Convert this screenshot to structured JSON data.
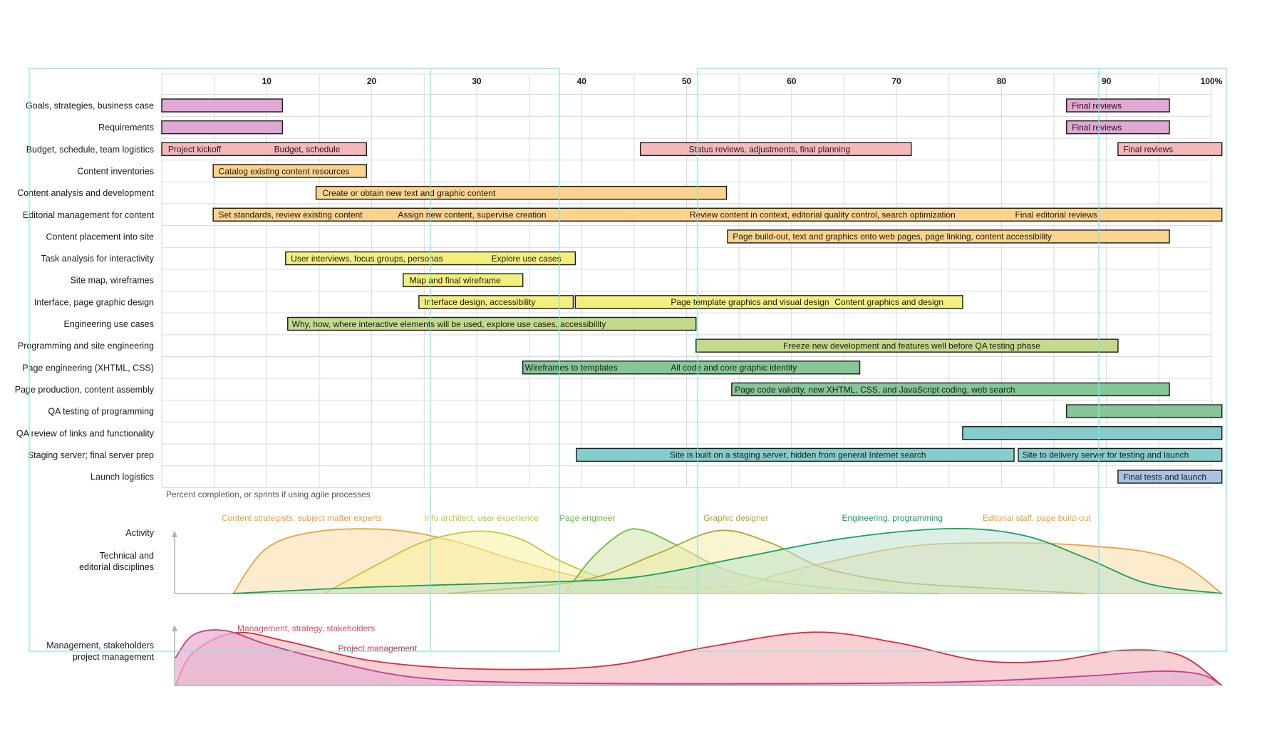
{
  "chart_data": {
    "type": "gantt",
    "x_axis": {
      "range": [
        0,
        100
      ],
      "ticks": [
        10,
        20,
        30,
        40,
        50,
        60,
        70,
        80,
        90,
        100
      ],
      "tick_labels": [
        "10",
        "20",
        "30",
        "40",
        "50",
        "60",
        "70",
        "80",
        "90",
        "100%"
      ],
      "note": "Percent completion, or sprints if using agile processes",
      "grid": true
    },
    "colors": {
      "mgmt": "#e2a8d4",
      "pm": "#f7b8bc",
      "content": "#fbd38c",
      "ux": "#f2ef7e",
      "eng": "#c3da8c",
      "page": "#85c796",
      "qa": "#85cccc",
      "launch": "#a9c3e6",
      "guide": "#7ee6e6"
    },
    "rows": [
      {
        "label": "Goals, strategies, business case",
        "bars": [
          {
            "start": 0,
            "end": 11.5,
            "color": "mgmt",
            "labels": []
          },
          {
            "start": 86.2,
            "end": 96,
            "color": "mgmt",
            "labels": [
              {
                "text": "Final reviews",
                "at": 86.7
              }
            ]
          }
        ]
      },
      {
        "label": "Requirements",
        "bars": [
          {
            "start": 0,
            "end": 11.5,
            "color": "mgmt",
            "labels": []
          },
          {
            "start": 86.2,
            "end": 96,
            "color": "mgmt",
            "labels": [
              {
                "text": "Final reviews",
                "at": 86.7
              }
            ]
          }
        ]
      },
      {
        "label": "Budget, schedule, team logistics",
        "bars": [
          {
            "start": 0,
            "end": 19.5,
            "color": "pm",
            "labels": [
              {
                "text": "Project kickoff",
                "at": 0.6
              },
              {
                "text": "Budget, schedule",
                "at": 10.7
              }
            ]
          },
          {
            "start": 45.6,
            "end": 71.4,
            "color": "pm",
            "labels": [
              {
                "text": "Status reviews, adjustments, final planning",
                "at": 50.2
              }
            ]
          },
          {
            "start": 91.1,
            "end": 101,
            "color": "pm",
            "labels": [
              {
                "text": "Final reviews",
                "at": 91.6
              }
            ]
          }
        ]
      },
      {
        "label": "Content inventories",
        "bars": [
          {
            "start": 4.9,
            "end": 19.5,
            "color": "content",
            "labels": [
              {
                "text": "Catalog existing content resources",
                "at": 5.4
              }
            ]
          }
        ]
      },
      {
        "label": "Content analysis and development",
        "bars": [
          {
            "start": 14.7,
            "end": 53.8,
            "color": "content",
            "labels": [
              {
                "text": "Create or obtain new text and graphic content",
                "at": 15.3
              }
            ]
          }
        ]
      },
      {
        "label": "Editorial management for content",
        "bars": [
          {
            "start": 4.9,
            "end": 101,
            "color": "content",
            "labels": [
              {
                "text": "Set standards, review existing content",
                "at": 5.4
              },
              {
                "text": "Assign new content, supervise creation",
                "at": 22.5
              },
              {
                "text": "Review content in context, editorial quality control, search optimization",
                "at": 50.3
              },
              {
                "text": "Final editorial reviews",
                "at": 81.3
              }
            ]
          }
        ]
      },
      {
        "label": "Content placement into site",
        "bars": [
          {
            "start": 53.9,
            "end": 96,
            "color": "content",
            "labels": [
              {
                "text": "Page build-out, text and graphics onto web pages, page linking, content accessibility",
                "at": 54.4
              }
            ]
          }
        ]
      },
      {
        "label": "Task analysis for interactivity",
        "bars": [
          {
            "start": 11.8,
            "end": 39.4,
            "color": "ux",
            "labels": [
              {
                "text": "User interviews, focus groups, personas",
                "at": 12.3
              },
              {
                "text": "Explore use cases",
                "at": 31.4
              }
            ]
          }
        ]
      },
      {
        "label": "Site map, wireframes",
        "bars": [
          {
            "start": 23,
            "end": 34.4,
            "color": "ux",
            "labels": [
              {
                "text": "Map and final wireframe",
                "at": 23.6
              }
            ]
          }
        ]
      },
      {
        "label": "Interface, page graphic design",
        "bars": [
          {
            "start": 24.5,
            "end": 39.2,
            "color": "ux",
            "labels": [
              {
                "text": "Interface design, accessibility",
                "at": 25
              }
            ]
          },
          {
            "start": 39.4,
            "end": 76.3,
            "color": "ux",
            "labels": [
              {
                "text": "Page template graphics and visual design",
                "at": 48.5
              },
              {
                "text": "Content graphics and design",
                "at": 64.1
              }
            ]
          }
        ]
      },
      {
        "label": "Engineering use cases",
        "bars": [
          {
            "start": 12,
            "end": 50.9,
            "color": "eng",
            "labels": [
              {
                "text": "Why, how, where interactive elements will be used, explore use cases, accessibility",
                "at": 12.4
              }
            ]
          }
        ]
      },
      {
        "label": "Programming and site engineering",
        "bars": [
          {
            "start": 50.9,
            "end": 91.1,
            "color": "eng",
            "labels": [
              {
                "text": "Freeze new development and features well before QA testing phase",
                "at": 59.2
              }
            ]
          }
        ]
      },
      {
        "label": "Page engineering (XHTML, CSS)",
        "bars": [
          {
            "start": 34.4,
            "end": 66.5,
            "color": "page",
            "labels": [
              {
                "text": "Wireframes to templates",
                "at": 34.6
              },
              {
                "text": "All code and core graphic identity",
                "at": 48.5
              }
            ]
          }
        ]
      },
      {
        "label": "Page production, content assembly",
        "bars": [
          {
            "start": 54.3,
            "end": 96,
            "color": "page",
            "labels": [
              {
                "text": "Page code validity, new XHTML, CSS,  and JavaScript coding, web search",
                "at": 54.6
              }
            ]
          }
        ]
      },
      {
        "label": "QA testing of programming",
        "bars": [
          {
            "start": 86.2,
            "end": 101,
            "color": "page",
            "labels": []
          }
        ]
      },
      {
        "label": "QA review of links and functionality",
        "bars": [
          {
            "start": 76.3,
            "end": 101,
            "color": "qa",
            "labels": []
          }
        ]
      },
      {
        "label": "Staging server; final server prep",
        "bars": [
          {
            "start": 39.5,
            "end": 81.2,
            "color": "qa",
            "labels": [
              {
                "text": "Site is built on a staging server, hidden from general Internet search",
                "at": 48.4
              }
            ]
          },
          {
            "start": 81.6,
            "end": 101,
            "color": "qa",
            "labels": [
              {
                "text": "Site to delivery server for testing and launch",
                "at": 82
              }
            ]
          }
        ]
      },
      {
        "label": "Launch logistics",
        "bars": [
          {
            "start": 91.1,
            "end": 101,
            "color": "launch",
            "labels": [
              {
                "text": "Final tests and launch",
                "at": 91.6
              }
            ]
          }
        ]
      }
    ],
    "activity": {
      "label": "Activity",
      "sublabel": [
        "Technical and",
        "editorial disciplines"
      ],
      "curves": [
        {
          "name": "Content strategists, subject matter  experts",
          "color": "#e8a33c",
          "fill": "#fbdba6",
          "label_at": 5.7,
          "points": [
            [
              6.8,
              0
            ],
            [
              10,
              0.7
            ],
            [
              15,
              0.96
            ],
            [
              22,
              0.98
            ],
            [
              28,
              0.8
            ],
            [
              34,
              0.5
            ],
            [
              40,
              0.25
            ],
            [
              46,
              0.12
            ],
            [
              50,
              0.1
            ],
            [
              55,
              0.12
            ],
            [
              60,
              0.35
            ],
            [
              70,
              0.7
            ],
            [
              78,
              0.78
            ],
            [
              88,
              0.74
            ],
            [
              96,
              0.55
            ],
            [
              101,
              0
            ]
          ]
        },
        {
          "name": "Info architect, user experience",
          "color": "#c7c437",
          "fill": "#f5f2a0",
          "label_at": 25,
          "points": [
            [
              15.5,
              0
            ],
            [
              20,
              0.4
            ],
            [
              25,
              0.8
            ],
            [
              30,
              0.96
            ],
            [
              34,
              0.85
            ],
            [
              38,
              0.5
            ],
            [
              43,
              0.2
            ],
            [
              50,
              0.06
            ],
            [
              58,
              0.03
            ],
            [
              66,
              0
            ]
          ]
        },
        {
          "name": "Page engineer",
          "color": "#6fb840",
          "fill": "#cfe4a8",
          "label_at": 37.9,
          "points": [
            [
              38.4,
              0
            ],
            [
              41,
              0.55
            ],
            [
              44,
              0.95
            ],
            [
              46,
              0.97
            ],
            [
              49,
              0.75
            ],
            [
              54,
              0.35
            ],
            [
              60,
              0.15
            ],
            [
              68,
              0.03
            ],
            [
              74,
              0
            ]
          ]
        },
        {
          "name": "Graphic designer",
          "color": "#b5a333",
          "fill": "#f2ecaa",
          "label_at": 51.6,
          "points": [
            [
              27.3,
              0
            ],
            [
              40,
              0.2
            ],
            [
              47,
              0.6
            ],
            [
              53,
              0.97
            ],
            [
              58,
              0.78
            ],
            [
              63,
              0.4
            ],
            [
              70,
              0.18
            ],
            [
              80,
              0.07
            ],
            [
              88,
              0
            ]
          ]
        },
        {
          "name": "Engineering, programming",
          "color": "#18a05c",
          "fill": "#bfe2cd",
          "label_at": 64.8,
          "points": [
            [
              6.8,
              0
            ],
            [
              20,
              0.1
            ],
            [
              35,
              0.17
            ],
            [
              45,
              0.25
            ],
            [
              55,
              0.55
            ],
            [
              65,
              0.85
            ],
            [
              75,
              1.0
            ],
            [
              82,
              0.9
            ],
            [
              88,
              0.55
            ],
            [
              94,
              0.15
            ],
            [
              101,
              0
            ]
          ]
        }
      ],
      "extra_labels": [
        {
          "text": "Editorial staff, page build-out",
          "color": "#e8a33c",
          "at": 78.2
        }
      ]
    },
    "management": {
      "label": [
        "Management, stakeholders",
        "project management"
      ],
      "curves": [
        {
          "name": "Project management",
          "color": "#d92b3a",
          "fill": "#f6bfc4",
          "label_at": 16.8,
          "points": [
            [
              1.3,
              0
            ],
            [
              3,
              0.6
            ],
            [
              7,
              0.96
            ],
            [
              12,
              0.8
            ],
            [
              20,
              0.45
            ],
            [
              30,
              0.3
            ],
            [
              42,
              0.35
            ],
            [
              52,
              0.7
            ],
            [
              62,
              0.97
            ],
            [
              70,
              0.78
            ],
            [
              78,
              0.45
            ],
            [
              85,
              0.45
            ],
            [
              91.5,
              0.64
            ],
            [
              97,
              0.55
            ],
            [
              101,
              0
            ]
          ]
        },
        {
          "name": "Management, strategy, stakeholders",
          "color": "#c03f8a",
          "fill": "#e7b3d3",
          "label_at": 7.2,
          "points": [
            [
              1.3,
              0.5
            ],
            [
              3,
              0.92
            ],
            [
              6,
              1.0
            ],
            [
              10,
              0.75
            ],
            [
              16,
              0.45
            ],
            [
              24,
              0.15
            ],
            [
              35,
              0.05
            ],
            [
              55,
              0.03
            ],
            [
              75,
              0.06
            ],
            [
              88,
              0.17
            ],
            [
              95,
              0.26
            ],
            [
              99,
              0.2
            ],
            [
              101,
              0
            ]
          ]
        }
      ]
    }
  }
}
